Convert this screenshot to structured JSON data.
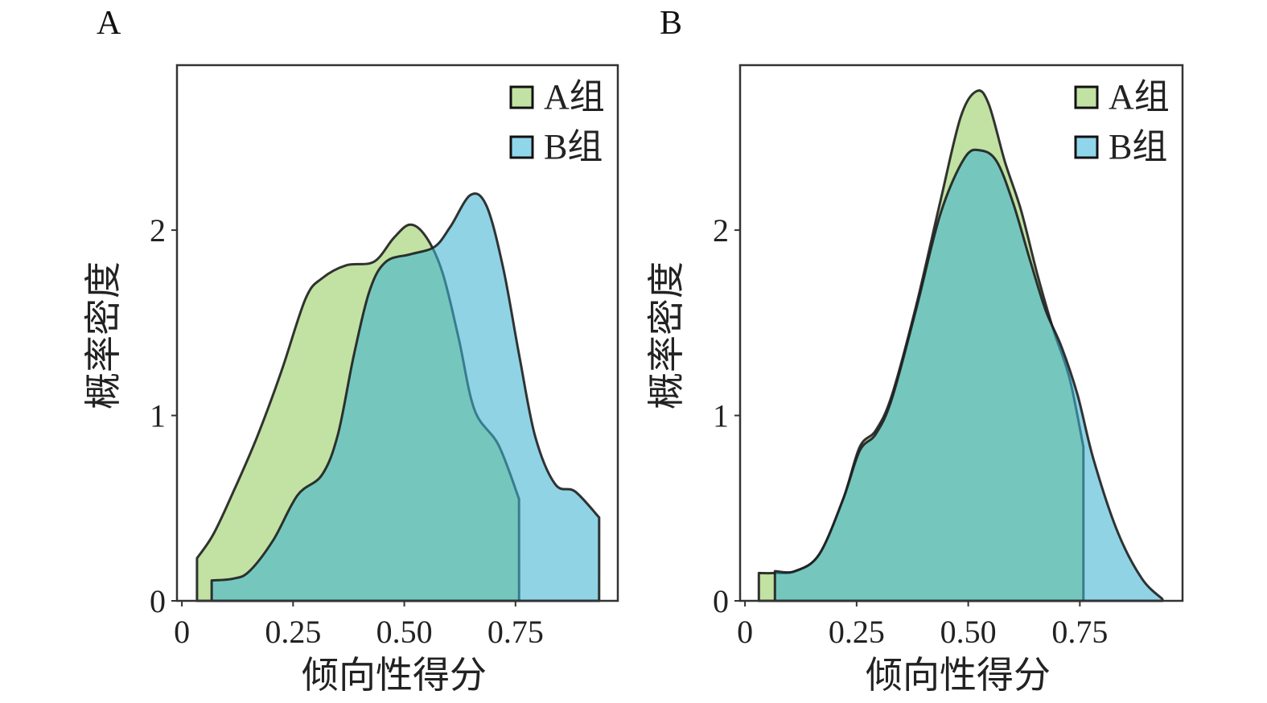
{
  "colors": {
    "a_fill": "#c1e2a3",
    "b_fill": "#3eb3d2",
    "b_alpha": 0.58,
    "stroke": "#1e1e1e"
  },
  "chart_data": [
    {
      "type": "area",
      "panel_label": "A",
      "xlabel": "倾向性得分",
      "ylabel": "概率密度",
      "xlim": [
        -0.011,
        0.98
      ],
      "ylim": [
        0,
        2.89
      ],
      "xticks": [
        0,
        0.25,
        0.5,
        0.75
      ],
      "xtick_labels": [
        "0",
        "0.25",
        "0.50",
        "0.75"
      ],
      "yticks": [
        0,
        1,
        2
      ],
      "ytick_labels": [
        "0",
        "1",
        "2"
      ],
      "legend_position": "top-right",
      "grid": false,
      "series": [
        {
          "name": "A组",
          "x": [
            0.034,
            0.071,
            0.116,
            0.17,
            0.224,
            0.278,
            0.315,
            0.369,
            0.432,
            0.477,
            0.514,
            0.55,
            0.586,
            0.622,
            0.658,
            0.712,
            0.758
          ],
          "y": [
            0.23,
            0.36,
            0.59,
            0.89,
            1.24,
            1.63,
            1.74,
            1.81,
            1.83,
            1.96,
            2.03,
            1.96,
            1.77,
            1.42,
            1.03,
            0.84,
            0.55
          ]
        },
        {
          "name": "B组",
          "x": [
            0.067,
            0.116,
            0.152,
            0.206,
            0.26,
            0.315,
            0.351,
            0.387,
            0.423,
            0.459,
            0.514,
            0.568,
            0.604,
            0.649,
            0.685,
            0.722,
            0.758,
            0.794,
            0.839,
            0.884,
            0.938
          ],
          "y": [
            0.11,
            0.12,
            0.16,
            0.33,
            0.57,
            0.68,
            0.9,
            1.33,
            1.68,
            1.83,
            1.87,
            1.91,
            2.02,
            2.19,
            2.13,
            1.8,
            1.33,
            0.89,
            0.63,
            0.59,
            0.45
          ]
        }
      ]
    },
    {
      "type": "area",
      "panel_label": "B",
      "xlabel": "倾向性得分",
      "ylabel": "概率密度",
      "xlim": [
        -0.011,
        0.98
      ],
      "ylim": [
        0,
        2.89
      ],
      "xticks": [
        0,
        0.25,
        0.5,
        0.75
      ],
      "xtick_labels": [
        "0",
        "0.25",
        "0.50",
        "0.75"
      ],
      "yticks": [
        0,
        1,
        2
      ],
      "ytick_labels": [
        "0",
        "1",
        "2"
      ],
      "legend_position": "top-right",
      "grid": false,
      "series": [
        {
          "name": "A组",
          "x": [
            0.031,
            0.067,
            0.112,
            0.166,
            0.22,
            0.257,
            0.293,
            0.329,
            0.383,
            0.438,
            0.483,
            0.519,
            0.546,
            0.582,
            0.618,
            0.655,
            0.691,
            0.727,
            0.758
          ],
          "y": [
            0.15,
            0.15,
            0.16,
            0.25,
            0.55,
            0.83,
            0.92,
            1.11,
            1.59,
            2.16,
            2.61,
            2.75,
            2.68,
            2.37,
            2.11,
            1.76,
            1.46,
            1.2,
            0.83
          ]
        },
        {
          "name": "B组",
          "x": [
            0.067,
            0.112,
            0.166,
            0.22,
            0.257,
            0.293,
            0.329,
            0.383,
            0.438,
            0.492,
            0.528,
            0.564,
            0.6,
            0.637,
            0.673,
            0.709,
            0.745,
            0.781,
            0.835,
            0.889,
            0.935
          ],
          "y": [
            0.16,
            0.16,
            0.25,
            0.55,
            0.81,
            0.9,
            1.09,
            1.57,
            2.09,
            2.39,
            2.43,
            2.37,
            2.15,
            1.85,
            1.57,
            1.37,
            1.11,
            0.76,
            0.37,
            0.12,
            0.01
          ]
        }
      ]
    }
  ]
}
